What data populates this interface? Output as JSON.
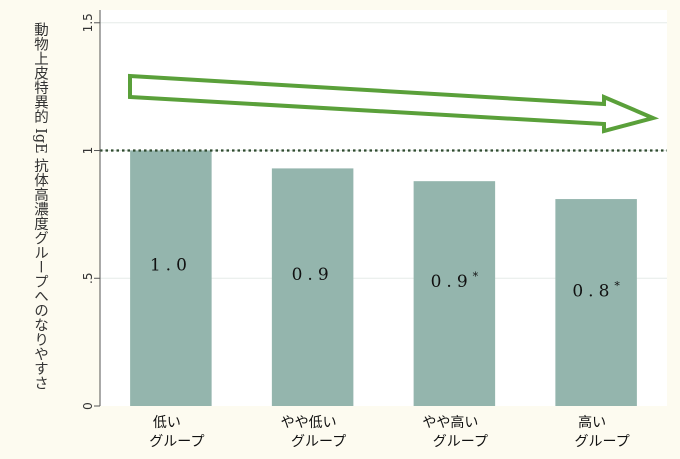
{
  "chart_data": {
    "type": "bar",
    "ylabel": "動物上皮特異的 IgE 抗体高濃度グループへのなりやすさ",
    "categories": [
      [
        "低い",
        "グループ"
      ],
      [
        "やや低い",
        "グループ"
      ],
      [
        "やや高い",
        "グループ"
      ],
      [
        "高い",
        "グループ"
      ]
    ],
    "values": [
      1.0,
      0.93,
      0.88,
      0.81
    ],
    "data_labels": [
      "1.0",
      "0.9",
      "0.9",
      "0.8"
    ],
    "significance_marks": [
      "",
      "",
      "*",
      "*"
    ],
    "yticks": [
      {
        "value": 0,
        "label": "0"
      },
      {
        "value": 0.5,
        "label": ".5"
      },
      {
        "value": 1,
        "label": "1"
      },
      {
        "value": 1.5,
        "label": "1.5"
      }
    ],
    "ylim": [
      0,
      1.55
    ],
    "reference_line": 1,
    "trend_arrow": "decreasing",
    "colors": {
      "bar": "#94b5ad",
      "plot_bg": "#ffffff",
      "page_bg": "#fdfbf0",
      "arrow": "#5aa03a",
      "reference_line": "#2f4a2f",
      "gridline": "#e6ece8"
    },
    "grid": true,
    "legend": "none"
  }
}
